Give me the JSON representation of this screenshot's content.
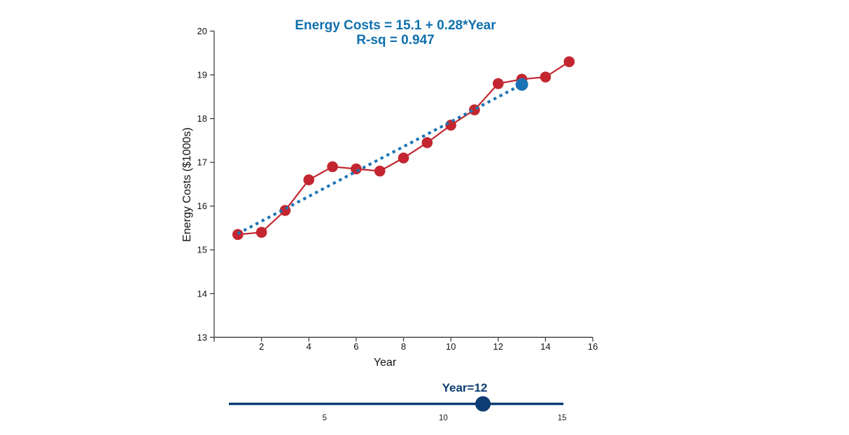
{
  "app": {
    "background": "#ffffff"
  },
  "chart_data": {
    "type": "line",
    "title_line1": "Energy Costs = 15.1 + 0.28*Year",
    "title_line2": "R-sq = 0.947",
    "xlabel": "Year",
    "ylabel": "Energy Costs ($1000s)",
    "x": [
      1,
      2,
      3,
      4,
      5,
      6,
      7,
      8,
      9,
      10,
      11,
      12,
      13,
      14,
      15
    ],
    "values": [
      15.35,
      15.4,
      15.9,
      16.6,
      16.9,
      16.85,
      16.8,
      17.1,
      17.45,
      17.85,
      18.2,
      18.8,
      18.9,
      18.95,
      19.3
    ],
    "xlim": [
      0,
      16
    ],
    "ylim": [
      13,
      20
    ],
    "xticks": [
      2,
      4,
      6,
      8,
      10,
      12,
      14,
      16
    ],
    "yticks": [
      13,
      14,
      15,
      16,
      17,
      18,
      19,
      20
    ],
    "grid": false,
    "legend": null,
    "regression": {
      "intercept": 15.1,
      "slope": 0.28,
      "r_sq": 0.947
    },
    "fit_line": {
      "x_start": 1,
      "y_start": 15.37,
      "x_end": 13,
      "y_end": 18.78,
      "style": "dotted"
    },
    "fitted_point": {
      "x": 13,
      "y": 18.78
    },
    "colors": {
      "data_series": "#c32630",
      "fit_line": "#1b73b4",
      "fitted_point": "#1b73b4",
      "title_text": "#0f70ae",
      "slider": "#0c3c73",
      "axis": "#3f3f3f"
    }
  },
  "slider": {
    "label": "Year=12",
    "value": 12,
    "ticks": [
      5,
      10,
      15
    ]
  }
}
